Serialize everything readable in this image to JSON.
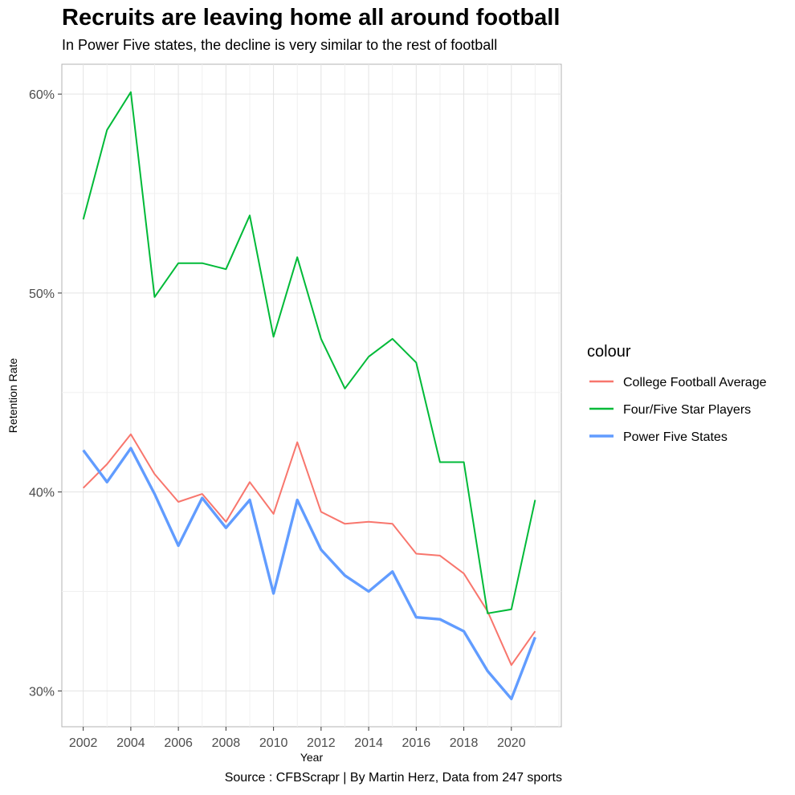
{
  "chart_data": {
    "type": "line",
    "title": "Recruits are leaving home all around football",
    "subtitle": "In Power Five states, the decline is very similar to the rest of football",
    "caption": "Source : CFBScrapr | By Martin Herz, Data from 247 sports",
    "xlabel": "Year",
    "ylabel": "Retention Rate",
    "x": [
      2002,
      2003,
      2004,
      2005,
      2006,
      2007,
      2008,
      2009,
      2010,
      2011,
      2012,
      2013,
      2014,
      2015,
      2016,
      2017,
      2018,
      2019,
      2020,
      2021
    ],
    "xlim": [
      2001.1,
      2022.1
    ],
    "ylim": [
      28.2,
      61.5
    ],
    "x_ticks": [
      2002,
      2004,
      2006,
      2008,
      2010,
      2012,
      2014,
      2016,
      2018,
      2020
    ],
    "x_tick_labels": [
      "2002",
      "2004",
      "2006",
      "2008",
      "2010",
      "2012",
      "2014",
      "2016",
      "2018",
      "2020"
    ],
    "y_ticks": [
      30,
      40,
      50,
      60
    ],
    "y_tick_labels": [
      "30%",
      "40%",
      "50%",
      "60%"
    ],
    "grid": true,
    "legend_title": "colour",
    "legend_position": "right",
    "series": [
      {
        "name": "College Football Average",
        "color": "#F8766D",
        "values": [
          40.2,
          41.4,
          42.9,
          40.9,
          39.5,
          39.9,
          38.5,
          40.5,
          38.9,
          42.5,
          39.0,
          38.4,
          38.5,
          38.4,
          36.9,
          36.8,
          35.9,
          34.0,
          31.3,
          33.0
        ]
      },
      {
        "name": "Four/Five Star Players",
        "color": "#00BA38",
        "values": [
          53.7,
          58.2,
          60.1,
          49.8,
          51.5,
          51.5,
          51.2,
          53.9,
          47.8,
          51.8,
          47.7,
          45.2,
          46.8,
          47.7,
          46.5,
          41.5,
          41.5,
          33.9,
          34.1,
          39.6
        ]
      },
      {
        "name": "Power Five States",
        "color": "#619CFF",
        "values": [
          42.1,
          40.5,
          42.2,
          39.9,
          37.3,
          39.7,
          38.2,
          39.6,
          34.9,
          39.6,
          37.1,
          35.8,
          35.0,
          36.0,
          33.7,
          33.6,
          33.0,
          31.0,
          29.6,
          32.7
        ]
      }
    ]
  }
}
